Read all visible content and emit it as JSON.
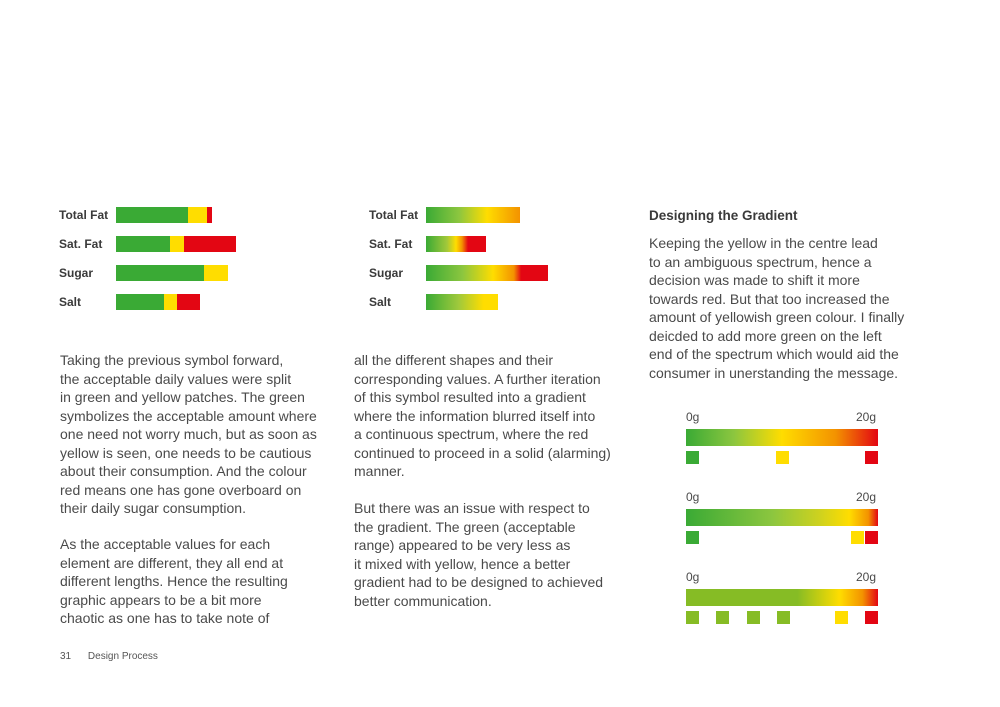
{
  "left_chart": {
    "rows": [
      {
        "label": "Total Fat",
        "segments": [
          {
            "color": "#3aaa35",
            "value": 72
          },
          {
            "color": "#ffdd00",
            "value": 19
          },
          {
            "color": "#e30613",
            "value": 5
          }
        ]
      },
      {
        "label": "Sat. Fat",
        "segments": [
          {
            "color": "#3aaa35",
            "value": 54
          },
          {
            "color": "#ffdd00",
            "value": 14
          },
          {
            "color": "#e30613",
            "value": 52
          }
        ]
      },
      {
        "label": "Sugar",
        "segments": [
          {
            "color": "#3aaa35",
            "value": 88
          },
          {
            "color": "#ffdd00",
            "value": 24
          }
        ]
      },
      {
        "label": "Salt",
        "segments": [
          {
            "color": "#3aaa35",
            "value": 48
          },
          {
            "color": "#ffdd00",
            "value": 13
          },
          {
            "color": "#e30613",
            "value": 23
          }
        ]
      }
    ]
  },
  "mid_chart": {
    "rows": [
      {
        "label": "Total Fat",
        "value": 94,
        "gradient": "linear-gradient(to right, #3aaa35 0%, #8cc63f 35%, #ffdd00 65%, #f39200 100%)"
      },
      {
        "label": "Sat. Fat",
        "value": 60,
        "gradient": "linear-gradient(to right, #3aaa35 0%, #a2c83a 35%, #ffdd00 50%, #f39200 60%, #e30613 70%, #e30613 100%)"
      },
      {
        "label": "Sugar",
        "value": 122,
        "gradient": "linear-gradient(to right, #3aaa35 0%, #8cc63f 30%, #ffdd00 55%, #f39200 72%, #e30613 78%, #e30613 100%)"
      },
      {
        "label": "Salt",
        "value": 72,
        "gradient": "linear-gradient(to right, #3aaa35 0%, #9fc93c 45%, #ffdd00 80%, #ffdd00 100%)"
      }
    ]
  },
  "left_text": {
    "p1": "Taking the previous symbol forward,\nthe acceptable daily values were split\nin green and yellow patches. The green\nsymbolizes the acceptable amount where\none need not worry much, but as soon as\nyellow is seen, one needs to be cautious\nabout their consumption. And the colour\nred means one has gone overboard on\ntheir daily sugar consumption.",
    "p2": "As the acceptable values for each\nelement are different, they all end at\ndifferent lengths. Hence the resulting\ngraphic appears to be a bit more\nchaotic as one has to take note of"
  },
  "mid_text": {
    "p1": "all the different shapes and their\ncorresponding values. A further iteration\nof this symbol resulted into a gradient\nwhere the information blurred itself into\na continuous spectrum, where the red\ncontinued to proceed in a solid (alarming)\nmanner.",
    "p2": "But there was an issue with respect to\nthe gradient. The green (acceptable\nrange) appeared to be very less as\nit mixed with yellow, hence a better\ngradient had to be designed to achieved\nbetter communication."
  },
  "right": {
    "heading": "Designing the Gradient",
    "p1": "Keeping the yellow in the centre lead\nto an ambiguous spectrum, hence a\ndecision was made to shift it more\ntowards red. But that too increased the\namount of yellowish green colour. I finally\ndeicded to add more green on the left\nend of the spectrum which would aid the\nconsumer in unerstanding the message.",
    "scales": [
      {
        "min_label": "0g",
        "max_label": "20g",
        "gradient": "linear-gradient(to right, #3aaa35 0%, #8cc63f 25%, #ffdd00 50%, #f39200 78%, #e30613 100%)",
        "markers": [
          {
            "color": "#3aaa35",
            "value": 0
          },
          {
            "color": "#ffdd00",
            "value": 0.5
          },
          {
            "color": "#e30613",
            "value": 1
          }
        ]
      },
      {
        "min_label": "0g",
        "max_label": "20g",
        "gradient": "linear-gradient(to right, #3aaa35 0%, #8cc63f 45%, #cfd21e 70%, #ffdd00 85%, #f39200 95%, #e30613 100%)",
        "markers": [
          {
            "color": "#3aaa35",
            "value": 0
          },
          {
            "color": "#ffdd00",
            "value": 0.92
          },
          {
            "color": "#e30613",
            "value": 1
          }
        ]
      },
      {
        "min_label": "0g",
        "max_label": "20g",
        "gradient": "linear-gradient(to right, #86bc25 0%, #86bc25 58%, #ffdd00 80%, #f39200 92%, #e30613 100%)",
        "markers": [
          {
            "color": "#86bc25",
            "value": 0
          },
          {
            "color": "#86bc25",
            "value": 0.17
          },
          {
            "color": "#86bc25",
            "value": 0.34
          },
          {
            "color": "#86bc25",
            "value": 0.51
          },
          {
            "color": "#ffdd00",
            "value": 0.83
          },
          {
            "color": "#e30613",
            "value": 1
          }
        ]
      }
    ]
  },
  "footer": {
    "page_number": "31",
    "section": "Design Process"
  }
}
